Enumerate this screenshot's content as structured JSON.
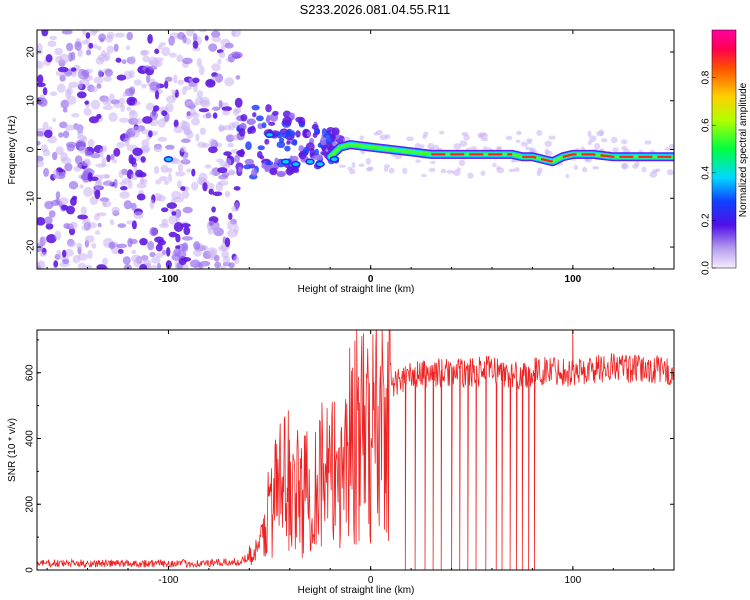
{
  "title": "S233.2026.081.04.55.R11",
  "chart_data": [
    {
      "type": "heatmap",
      "name": "spectrogram",
      "xlabel": "Height of straight line (km)",
      "ylabel": "Frequency (Hz)",
      "xlim": [
        -165,
        150
      ],
      "ylim": [
        -24.5,
        24.5
      ],
      "xticks": [
        -100,
        0,
        100
      ],
      "yticks": [
        20,
        10,
        0,
        -10,
        -20
      ],
      "ytick_labels": [
        "20",
        "10",
        "0",
        "-10",
        "-20"
      ],
      "colorbar": {
        "label": "Normalized spectral amplitude",
        "range": [
          0,
          1
        ],
        "ticks": [
          0.0,
          0.2,
          0.4,
          0.6,
          0.8
        ],
        "tick_labels": [
          "0.0",
          "0.2",
          "0.4",
          "0.6",
          "0.8"
        ]
      },
      "carrier_track": {
        "description": "Doppler line frequency vs height",
        "x": [
          -20,
          -15,
          -10,
          0,
          10,
          20,
          30,
          40,
          50,
          60,
          70,
          75,
          80,
          85,
          90,
          95,
          100,
          110,
          120,
          130,
          140,
          150
        ],
        "y": [
          -1.5,
          0.5,
          1.0,
          0.5,
          0.0,
          -0.5,
          -1.0,
          -1.0,
          -1.0,
          -1.0,
          -1.0,
          -1.5,
          -1.5,
          -2.0,
          -2.5,
          -1.5,
          -1.0,
          -1.0,
          -1.5,
          -1.5,
          -1.5,
          -1.5
        ]
      },
      "noise_region_x": [
        -165,
        -65
      ],
      "transition_region_x": [
        -65,
        -15
      ]
    },
    {
      "type": "line",
      "name": "snr",
      "xlabel": "Height of straight line (km)",
      "ylabel": "SNR (10 * v/v)",
      "xlim": [
        -165,
        150
      ],
      "ylim": [
        0,
        730
      ],
      "xticks": [
        -100,
        0,
        100
      ],
      "yticks": [
        0,
        200,
        400,
        600
      ],
      "ytick_labels": [
        "0",
        "200",
        "400",
        "600"
      ],
      "series": [
        {
          "name": "SNR",
          "color": "#ee2222",
          "x": [
            -165,
            -120,
            -80,
            -65,
            -55,
            -50,
            -45,
            -40,
            -35,
            -30,
            -25,
            -20,
            -15,
            -10,
            -5,
            0,
            5,
            10,
            15,
            20,
            30,
            40,
            50,
            60,
            70,
            80,
            90,
            100,
            110,
            120,
            130,
            140,
            150
          ],
          "y": [
            20,
            20,
            20,
            25,
            60,
            200,
            250,
            280,
            220,
            250,
            300,
            270,
            320,
            400,
            380,
            430,
            450,
            560,
            580,
            590,
            600,
            600,
            600,
            610,
            590,
            600,
            610,
            600,
            610,
            620,
            610,
            610,
            600
          ]
        }
      ],
      "dropout_x": [
        17,
        22,
        27,
        31,
        35,
        40,
        44,
        48,
        52,
        57,
        62,
        65,
        69,
        72,
        75,
        78,
        81
      ],
      "spike_x": [
        -7,
        100
      ]
    }
  ]
}
